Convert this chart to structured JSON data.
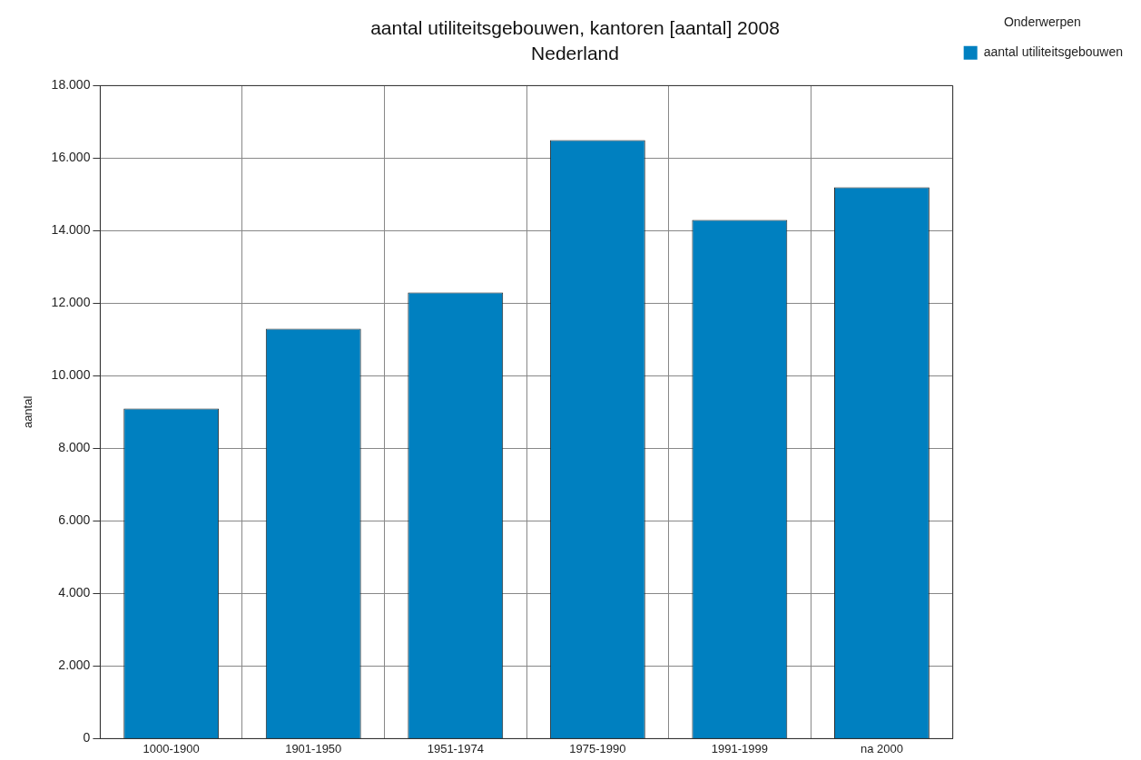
{
  "chart_data": {
    "type": "bar",
    "title": "aantal utiliteitsgebouwen, kantoren [aantal] 2008",
    "subtitle": "Nederland",
    "ylabel": "aantal",
    "legend_title": "Onderwerpen",
    "legend": "top right",
    "grid": true,
    "categories": [
      "1000-1900",
      "1901-1950",
      "1951-1974",
      "1975-1990",
      "1991-1999",
      "na 2000"
    ],
    "series": [
      {
        "name": "aantal utiliteitsgebouwen",
        "color": "#0080c0",
        "values": [
          9100,
          11300,
          12300,
          16500,
          14300,
          15200
        ]
      }
    ],
    "ylim": [
      0,
      18000
    ],
    "yticks": [
      {
        "value": 0,
        "label": "0"
      },
      {
        "value": 2000,
        "label": "2.000"
      },
      {
        "value": 4000,
        "label": "4.000"
      },
      {
        "value": 6000,
        "label": "6.000"
      },
      {
        "value": 8000,
        "label": "8.000"
      },
      {
        "value": 10000,
        "label": "10.000"
      },
      {
        "value": 12000,
        "label": "12.000"
      },
      {
        "value": 14000,
        "label": "14.000"
      },
      {
        "value": 16000,
        "label": "16.000"
      },
      {
        "value": 18000,
        "label": "18.000"
      }
    ]
  }
}
